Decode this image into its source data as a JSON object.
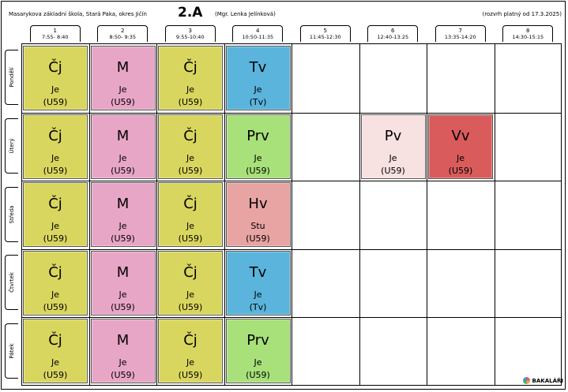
{
  "header": {
    "school": "Masarykova základní škola, Stará Paka, okres Jičín",
    "class_name": "2.A",
    "teacher": "(Mgr. Lenka Jelínková)",
    "valid_from": "(rozvrh platný od 17.3.2025)"
  },
  "periods": [
    {
      "num": "1",
      "time": "7:55- 8:40"
    },
    {
      "num": "2",
      "time": "8:50- 9:35"
    },
    {
      "num": "3",
      "time": "9:55-10:40"
    },
    {
      "num": "4",
      "time": "10:50-11:35"
    },
    {
      "num": "5",
      "time": "11:45-12:30"
    },
    {
      "num": "6",
      "time": "12:40-13:25"
    },
    {
      "num": "7",
      "time": "13:35-14:20"
    },
    {
      "num": "8",
      "time": "14:30-15:15"
    }
  ],
  "days": [
    "Pondělí",
    "Úterý",
    "Středa",
    "Čtvrtek",
    "Pátek"
  ],
  "colors": {
    "cj": "#d9d65f",
    "m": "#e8a6c7",
    "tv": "#5ab4dc",
    "prv": "#a8e07a",
    "hv": "#e8a3a3",
    "pv": "#f7e1e1",
    "vv": "#d95b5b"
  },
  "lessons": [
    {
      "day": 0,
      "period": 0,
      "subject": "Čj",
      "teacher": "Je",
      "room": "(U59)",
      "color": "#d9d65f"
    },
    {
      "day": 0,
      "period": 1,
      "subject": "M",
      "teacher": "Je",
      "room": "(U59)",
      "color": "#e8a6c7"
    },
    {
      "day": 0,
      "period": 2,
      "subject": "Čj",
      "teacher": "Je",
      "room": "(U59)",
      "color": "#d9d65f"
    },
    {
      "day": 0,
      "period": 3,
      "subject": "Tv",
      "teacher": "Je",
      "room": "(Tv)",
      "color": "#5ab4dc"
    },
    {
      "day": 1,
      "period": 0,
      "subject": "Čj",
      "teacher": "Je",
      "room": "(U59)",
      "color": "#d9d65f"
    },
    {
      "day": 1,
      "period": 1,
      "subject": "M",
      "teacher": "Je",
      "room": "(U59)",
      "color": "#e8a6c7"
    },
    {
      "day": 1,
      "period": 2,
      "subject": "Čj",
      "teacher": "Je",
      "room": "(U59)",
      "color": "#d9d65f"
    },
    {
      "day": 1,
      "period": 3,
      "subject": "Prv",
      "teacher": "Je",
      "room": "(U59)",
      "color": "#a8e07a"
    },
    {
      "day": 1,
      "period": 5,
      "subject": "Pv",
      "teacher": "Je",
      "room": "(U59)",
      "color": "#f7e1e1"
    },
    {
      "day": 1,
      "period": 6,
      "subject": "Vv",
      "teacher": "Je",
      "room": "(U59)",
      "color": "#d95b5b"
    },
    {
      "day": 2,
      "period": 0,
      "subject": "Čj",
      "teacher": "Je",
      "room": "(U59)",
      "color": "#d9d65f"
    },
    {
      "day": 2,
      "period": 1,
      "subject": "M",
      "teacher": "Je",
      "room": "(U59)",
      "color": "#e8a6c7"
    },
    {
      "day": 2,
      "period": 2,
      "subject": "Čj",
      "teacher": "Je",
      "room": "(U59)",
      "color": "#d9d65f"
    },
    {
      "day": 2,
      "period": 3,
      "subject": "Hv",
      "teacher": "Stu",
      "room": "(U59)",
      "color": "#e8a3a3"
    },
    {
      "day": 3,
      "period": 0,
      "subject": "Čj",
      "teacher": "Je",
      "room": "(U59)",
      "color": "#d9d65f"
    },
    {
      "day": 3,
      "period": 1,
      "subject": "M",
      "teacher": "Je",
      "room": "(U59)",
      "color": "#e8a6c7"
    },
    {
      "day": 3,
      "period": 2,
      "subject": "Čj",
      "teacher": "Je",
      "room": "(U59)",
      "color": "#d9d65f"
    },
    {
      "day": 3,
      "period": 3,
      "subject": "Tv",
      "teacher": "Je",
      "room": "(Tv)",
      "color": "#5ab4dc"
    },
    {
      "day": 4,
      "period": 0,
      "subject": "Čj",
      "teacher": "Je",
      "room": "(U59)",
      "color": "#d9d65f"
    },
    {
      "day": 4,
      "period": 1,
      "subject": "M",
      "teacher": "Je",
      "room": "(U59)",
      "color": "#e8a6c7"
    },
    {
      "day": 4,
      "period": 2,
      "subject": "Čj",
      "teacher": "Je",
      "room": "(U59)",
      "color": "#d9d65f"
    },
    {
      "day": 4,
      "period": 3,
      "subject": "Prv",
      "teacher": "Je",
      "room": "(U59)",
      "color": "#a8e07a"
    }
  ],
  "logo": {
    "label": "BAKALÁŘI",
    "icon": "bakalari-logo-icon"
  }
}
